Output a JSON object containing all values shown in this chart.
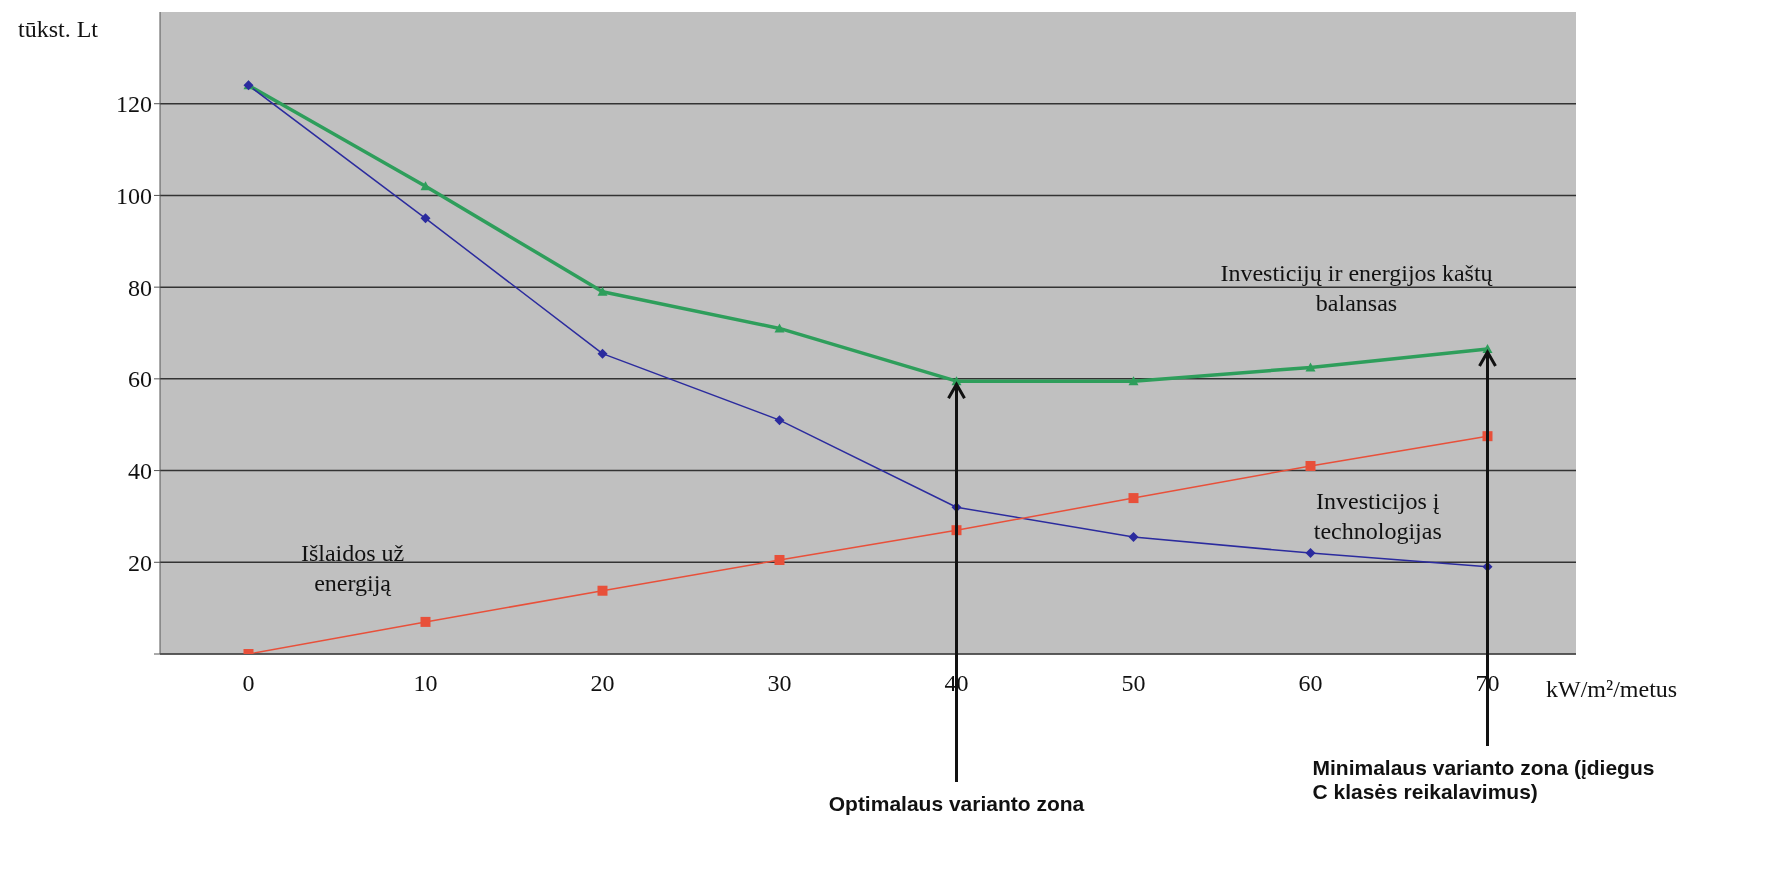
{
  "chart_data": {
    "type": "line",
    "ylabel": "tūkst. Lt",
    "xlabel": "kW/m²/metus",
    "categories": [
      "0",
      "10",
      "20",
      "30",
      "40",
      "50",
      "60",
      "70"
    ],
    "series": [
      {
        "color": "#2e9e5b",
        "marker": "triangle",
        "values": [
          124,
          102,
          79,
          71,
          59.5,
          59.5,
          62.5,
          66.5
        ]
      },
      {
        "color": "#2b2b9e",
        "marker": "diamond",
        "values": [
          124,
          95,
          65.5,
          51,
          32,
          25.5,
          22,
          19
        ]
      },
      {
        "color": "#e8503a",
        "marker": "square",
        "values": [
          0,
          7,
          13.8,
          20.5,
          27,
          34,
          41,
          47.5
        ]
      }
    ],
    "ylim": [
      0,
      140
    ],
    "yticks": [
      {
        "value": 0,
        "label": null
      },
      20,
      40,
      60,
      80,
      100,
      120
    ],
    "grid": "y",
    "annotations": [
      "Investicijų ir energijos kaštų balansas",
      "Investicijos į technologijas",
      "Išlaidos už energiją",
      {
        "text": "Optimalaus varianto zona",
        "x": "40",
        "y": 59.5
      },
      {
        "text": "Minimalaus varianto zona (įdiegus C klasės reikalavimus)",
        "x": "70",
        "y": 66.5
      }
    ]
  }
}
